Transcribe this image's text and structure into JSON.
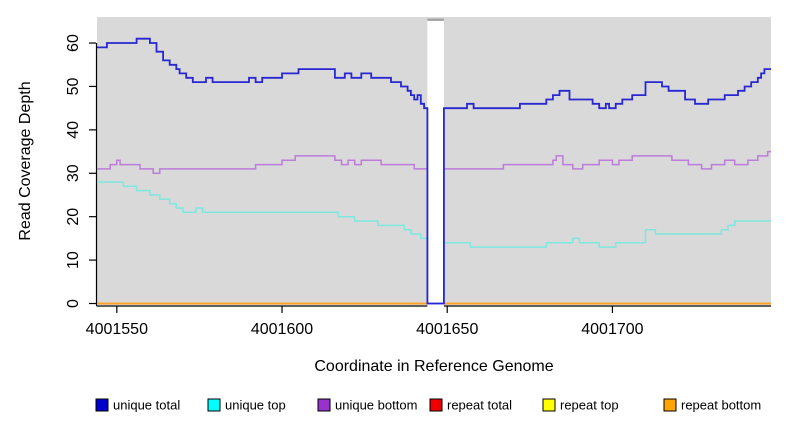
{
  "chart_data": {
    "type": "line",
    "subtype": "step",
    "title": "",
    "xlabel": "Coordinate in Reference Genome",
    "ylabel": "Read Coverage Depth",
    "xlim": [
      4001544,
      4001748
    ],
    "ylim": [
      0,
      66
    ],
    "x_ticks": [
      4001550,
      4001600,
      4001650,
      4001700
    ],
    "y_ticks": [
      0,
      10,
      20,
      30,
      40,
      50,
      60
    ],
    "grid": false,
    "legend_position": "bottom",
    "style": {
      "panel_color": "#d9d9d9",
      "background": "#ffffff",
      "axis_color": "#000000",
      "gap_band_color": "#ffffff",
      "gap_band_top_strip": "#a0a0a0"
    },
    "gap_band": {
      "x0": 4001644,
      "x1": 4001649,
      "note": "white no-data band"
    },
    "draw_order": [
      "repeat total",
      "repeat top",
      "repeat bottom",
      "unique top",
      "unique bottom",
      "unique total"
    ],
    "series": [
      {
        "name": "unique total",
        "color": "#2727d3",
        "legend_color": "#0000cd",
        "width": 1.8,
        "segments": [
          [
            [
              4001544,
              59
            ],
            [
              4001547,
              60
            ],
            [
              4001556,
              61
            ],
            [
              4001560,
              60
            ],
            [
              4001562,
              58
            ],
            [
              4001564,
              56
            ],
            [
              4001566,
              55
            ],
            [
              4001568,
              54
            ],
            [
              4001569,
              53
            ],
            [
              4001571,
              52
            ],
            [
              4001573,
              51
            ],
            [
              4001577,
              52
            ],
            [
              4001579,
              51
            ],
            [
              4001590,
              52
            ],
            [
              4001592,
              51
            ],
            [
              4001594,
              52
            ],
            [
              4001600,
              53
            ],
            [
              4001605,
              54
            ],
            [
              4001616,
              52
            ],
            [
              4001619,
              53
            ],
            [
              4001621,
              52
            ],
            [
              4001624,
              53
            ],
            [
              4001627,
              52
            ],
            [
              4001633,
              51
            ],
            [
              4001636,
              50
            ],
            [
              4001638,
              49
            ],
            [
              4001639,
              48
            ],
            [
              4001640,
              47
            ],
            [
              4001641,
              48
            ],
            [
              4001642,
              46
            ],
            [
              4001643,
              45
            ],
            [
              4001644,
              0
            ],
            [
              4001649,
              45
            ],
            [
              4001656,
              46
            ],
            [
              4001658,
              45
            ],
            [
              4001672,
              46
            ],
            [
              4001680,
              47
            ],
            [
              4001682,
              48
            ],
            [
              4001684,
              49
            ],
            [
              4001687,
              47
            ],
            [
              4001694,
              46
            ],
            [
              4001696,
              45
            ],
            [
              4001698,
              46
            ],
            [
              4001699,
              45
            ],
            [
              4001701,
              46
            ],
            [
              4001703,
              47
            ],
            [
              4001706,
              48
            ],
            [
              4001710,
              51
            ],
            [
              4001715,
              50
            ],
            [
              4001717,
              49
            ],
            [
              4001722,
              47
            ],
            [
              4001725,
              46
            ],
            [
              4001729,
              47
            ],
            [
              4001734,
              48
            ],
            [
              4001738,
              49
            ],
            [
              4001740,
              50
            ],
            [
              4001742,
              51
            ],
            [
              4001744,
              52
            ],
            [
              4001745,
              53
            ],
            [
              4001746,
              54
            ],
            [
              4001748,
              54
            ]
          ]
        ]
      },
      {
        "name": "unique top",
        "color": "#7ee7e0",
        "legend_color": "#00ffff",
        "width": 1.5,
        "segments": [
          [
            [
              4001544,
              28
            ],
            [
              4001552,
              27
            ],
            [
              4001556,
              26
            ],
            [
              4001560,
              25
            ],
            [
              4001563,
              24
            ],
            [
              4001566,
              23
            ],
            [
              4001568,
              22
            ],
            [
              4001570,
              21
            ],
            [
              4001574,
              22
            ],
            [
              4001576,
              21
            ],
            [
              4001617,
              20
            ],
            [
              4001622,
              19
            ],
            [
              4001629,
              18
            ],
            [
              4001637,
              17
            ],
            [
              4001639,
              16
            ],
            [
              4001642,
              15
            ],
            [
              4001644,
              0
            ],
            [
              4001649,
              14
            ],
            [
              4001657,
              13
            ],
            [
              4001680,
              14
            ],
            [
              4001688,
              15
            ],
            [
              4001690,
              14
            ],
            [
              4001696,
              13
            ],
            [
              4001701,
              14
            ],
            [
              4001710,
              17
            ],
            [
              4001713,
              16
            ],
            [
              4001733,
              17
            ],
            [
              4001735,
              18
            ],
            [
              4001737,
              19
            ],
            [
              4001748,
              19
            ]
          ]
        ]
      },
      {
        "name": "unique bottom",
        "color": "#bd7cdc",
        "legend_color": "#9932cc",
        "width": 1.5,
        "segments": [
          [
            [
              4001544,
              31
            ],
            [
              4001548,
              32
            ],
            [
              4001550,
              33
            ],
            [
              4001551,
              32
            ],
            [
              4001557,
              31
            ],
            [
              4001561,
              30
            ],
            [
              4001563,
              31
            ],
            [
              4001592,
              32
            ],
            [
              4001600,
              33
            ],
            [
              4001604,
              34
            ],
            [
              4001616,
              33
            ],
            [
              4001618,
              32
            ],
            [
              4001620,
              33
            ],
            [
              4001622,
              32
            ],
            [
              4001624,
              33
            ],
            [
              4001630,
              32
            ],
            [
              4001640,
              31
            ],
            [
              4001644,
              0
            ],
            [
              4001649,
              31
            ],
            [
              4001667,
              32
            ],
            [
              4001682,
              33
            ],
            [
              4001683,
              34
            ],
            [
              4001685,
              32
            ],
            [
              4001688,
              31
            ],
            [
              4001691,
              32
            ],
            [
              4001696,
              33
            ],
            [
              4001700,
              32
            ],
            [
              4001702,
              33
            ],
            [
              4001706,
              34
            ],
            [
              4001718,
              33
            ],
            [
              4001723,
              32
            ],
            [
              4001727,
              31
            ],
            [
              4001730,
              32
            ],
            [
              4001734,
              33
            ],
            [
              4001737,
              32
            ],
            [
              4001741,
              33
            ],
            [
              4001744,
              34
            ],
            [
              4001747,
              35
            ],
            [
              4001748,
              35
            ]
          ]
        ]
      },
      {
        "name": "repeat total",
        "color": "#e00000",
        "legend_color": "#ee0000",
        "width": 1.5,
        "segments": [
          [
            [
              4001544,
              0
            ],
            [
              4001644,
              0
            ]
          ],
          [
            [
              4001649,
              0
            ],
            [
              4001748,
              0
            ]
          ]
        ]
      },
      {
        "name": "repeat top",
        "color": "#ffff00",
        "legend_color": "#ffff00",
        "width": 1.5,
        "segments": [
          [
            [
              4001544,
              0
            ],
            [
              4001644,
              0
            ]
          ],
          [
            [
              4001649,
              0
            ],
            [
              4001748,
              0
            ]
          ]
        ]
      },
      {
        "name": "repeat bottom",
        "color": "#ffa427",
        "legend_color": "#ffa500",
        "width": 1.8,
        "segments": [
          [
            [
              4001544,
              0
            ],
            [
              4001644,
              0
            ]
          ],
          [
            [
              4001649,
              0
            ],
            [
              4001748,
              0
            ]
          ]
        ]
      }
    ]
  }
}
